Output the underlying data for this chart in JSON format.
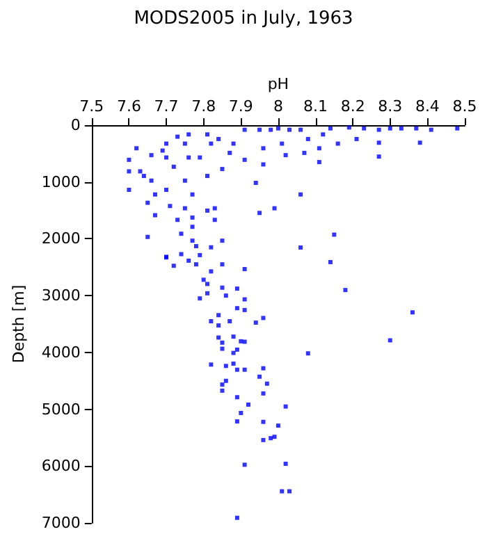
{
  "chart_data": {
    "type": "scatter",
    "title": "MODS2005 in July, 1963",
    "xlabel": "pH",
    "ylabel": "Depth [m]",
    "xlim": [
      7.5,
      8.5
    ],
    "xticks": [
      7.5,
      7.6,
      7.7,
      7.8,
      7.9,
      8,
      8.1,
      8.2,
      8.3,
      8.4,
      8.5
    ],
    "ylim": [
      7000,
      0
    ],
    "yticks": [
      0,
      1000,
      2000,
      3000,
      4000,
      5000,
      6000,
      7000
    ],
    "grid": false,
    "marker": "square",
    "color": "#0000ff",
    "x": [
      8.48,
      8.41,
      8.37,
      8.38,
      8.33,
      8.3,
      8.27,
      8.27,
      8.27,
      8.23,
      8.21,
      8.19,
      8.16,
      8.14,
      8.12,
      8.11,
      8.11,
      8.08,
      8.07,
      8.06,
      8.03,
      8.02,
      8.01,
      8.0,
      7.98,
      7.96,
      7.96,
      7.94,
      7.95,
      7.91,
      7.91,
      7.88,
      7.87,
      7.85,
      7.84,
      7.82,
      7.81,
      7.81,
      7.79,
      7.76,
      7.76,
      7.75,
      7.75,
      7.73,
      7.72,
      7.7,
      7.7,
      7.7,
      7.69,
      7.67,
      7.66,
      7.66,
      7.64,
      7.63,
      7.62,
      7.6,
      7.6,
      7.6,
      7.65,
      7.67,
      7.71,
      7.75,
      7.77,
      7.77,
      7.81,
      7.83,
      7.83,
      7.77,
      7.73,
      7.74,
      7.65,
      7.77,
      7.78,
      7.82,
      7.85,
      8.06,
      7.99,
      7.95,
      8.15,
      8.06,
      7.7,
      7.7,
      7.74,
      7.76,
      7.79,
      7.72,
      7.78,
      7.82,
      7.85,
      7.91,
      8.14,
      8.18,
      7.8,
      7.81,
      7.85,
      7.89,
      7.81,
      7.86,
      7.79,
      7.91,
      7.89,
      7.91,
      8.36,
      7.84,
      7.82,
      7.84,
      7.87,
      7.94,
      7.96,
      7.84,
      7.88,
      7.9,
      7.91,
      7.85,
      7.85,
      7.89,
      7.88,
      8.08,
      8.3,
      7.82,
      7.86,
      7.88,
      7.89,
      7.91,
      7.96,
      7.95,
      7.86,
      7.97,
      7.85,
      7.85,
      7.96,
      7.89,
      7.92,
      8.02,
      7.9,
      7.89,
      7.96,
      8.0,
      7.98,
      7.99,
      7.96,
      7.91,
      8.02,
      8.01,
      8.03,
      7.89
    ],
    "values": [
      57,
      81,
      57,
      309,
      57,
      57,
      81,
      309,
      553,
      57,
      244,
      41,
      325,
      57,
      163,
      407,
      650,
      244,
      488,
      81,
      81,
      528,
      325,
      57,
      81,
      407,
      691,
      1016,
      81,
      81,
      610,
      325,
      488,
      772,
      244,
      325,
      163,
      894,
      569,
      163,
      569,
      325,
      976,
      203,
      732,
      325,
      569,
      1138,
      447,
      1220,
      528,
      976,
      894,
      813,
      407,
      610,
      813,
      1138,
      1366,
      1585,
      1423,
      1463,
      1220,
      1626,
      1504,
      1463,
      1667,
      1789,
      1667,
      1911,
      1967,
      2033,
      2130,
      2150,
      2033,
      1220,
      1463,
      1545,
      1927,
      2154,
      2317,
      2328,
      2270,
      2385,
      2287,
      2475,
      2450,
      2574,
      2450,
      2533,
      2410,
      2902,
      2721,
      2795,
      2860,
      2877,
      2959,
      3000,
      3049,
      3066,
      3221,
      3254,
      3295,
      3344,
      3451,
      3525,
      3451,
      3476,
      3394,
      3738,
      3722,
      3804,
      3812,
      3828,
      3935,
      3951,
      4009,
      4017,
      3787,
      4214,
      4238,
      4197,
      4304,
      4304,
      4279,
      4427,
      4500,
      4550,
      4566,
      4673,
      4722,
      4788,
      4919,
      4952,
      5066,
      5214,
      5222,
      5288,
      5509,
      5485,
      5542,
      5977,
      5960,
      6444,
      6444,
      6911
    ]
  }
}
